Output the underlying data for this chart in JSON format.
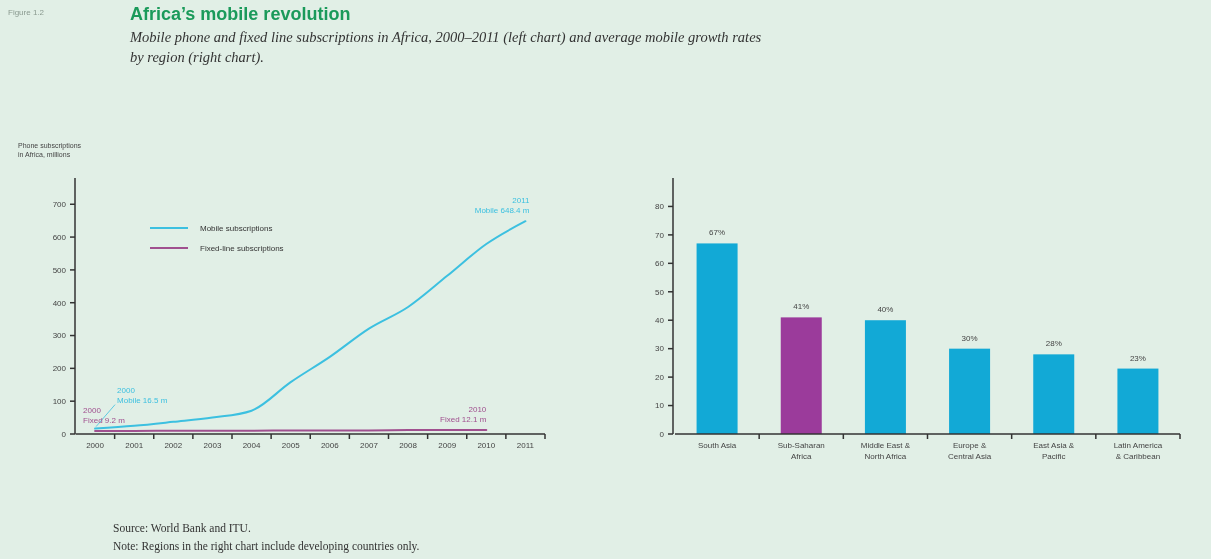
{
  "chart_data": [
    {
      "type": "line",
      "title": "Africa’s mobile revolution",
      "subtitle": "Mobile phone and fixed line subscriptions in Africa, 2000–2011 (left chart) and average mobile growth rates\nby region (right chart).",
      "ylabel": "Phone subscriptions\nin Africa, millions",
      "categories": [
        "2000",
        "2001",
        "2002",
        "2003",
        "2004",
        "2005",
        "2006",
        "2007",
        "2008",
        "2009",
        "2010",
        "2011"
      ],
      "series": [
        {
          "name": "Mobile subscriptions",
          "color": "#3cc0e0",
          "values": [
            16.5,
            25,
            37,
            50,
            71,
            158,
            235,
            321,
            387,
            482,
            579,
            648.4
          ]
        },
        {
          "name": "Fixed-line subscriptions",
          "color": "#a0508f",
          "values": [
            9.2,
            9,
            10,
            10,
            10,
            11,
            11,
            11,
            12,
            12,
            12.1,
            null
          ]
        }
      ],
      "ylim": [
        0,
        780
      ],
      "yticks": [
        0,
        100,
        200,
        300,
        400,
        500,
        600,
        700
      ],
      "legend": "top left",
      "annotations": [
        "Figure 1.2",
        {
          "text": "2011\nMobile 648.4 m",
          "x": "2011",
          "y": 648.4
        },
        {
          "text": "2000\nMobile 16.5 m",
          "x": "2000",
          "y": 16.5
        },
        {
          "text": "2000\nFixed 9.2 m",
          "x": "2000",
          "y": 9.2
        },
        {
          "text": "2010\nFixed 12.1 m",
          "x": "2010",
          "y": 12.1
        }
      ]
    },
    {
      "type": "bar",
      "categories": [
        "South Asia",
        "Sub-Saharan Africa",
        "Middle East & North Africa",
        "Europe & Central Asia",
        "East Asia & Pacific",
        "Latin America & Caribbean"
      ],
      "values": [
        67,
        41,
        40,
        30,
        28,
        23
      ],
      "colors": [
        "#12a9d6",
        "#9b3b9b",
        "#12a9d6",
        "#12a9d6",
        "#12a9d6",
        "#12a9d6"
      ],
      "value_labels": [
        "67%",
        "41%",
        "40%",
        "30%",
        "28%",
        "23%"
      ],
      "ylim": [
        0,
        90
      ],
      "yticks": [
        0,
        10,
        20,
        30,
        40,
        50,
        60,
        70,
        80
      ],
      "annotations": [
        "Source: World Bank and ITU.",
        "Note: Regions in the right chart include developing countries only."
      ]
    }
  ]
}
